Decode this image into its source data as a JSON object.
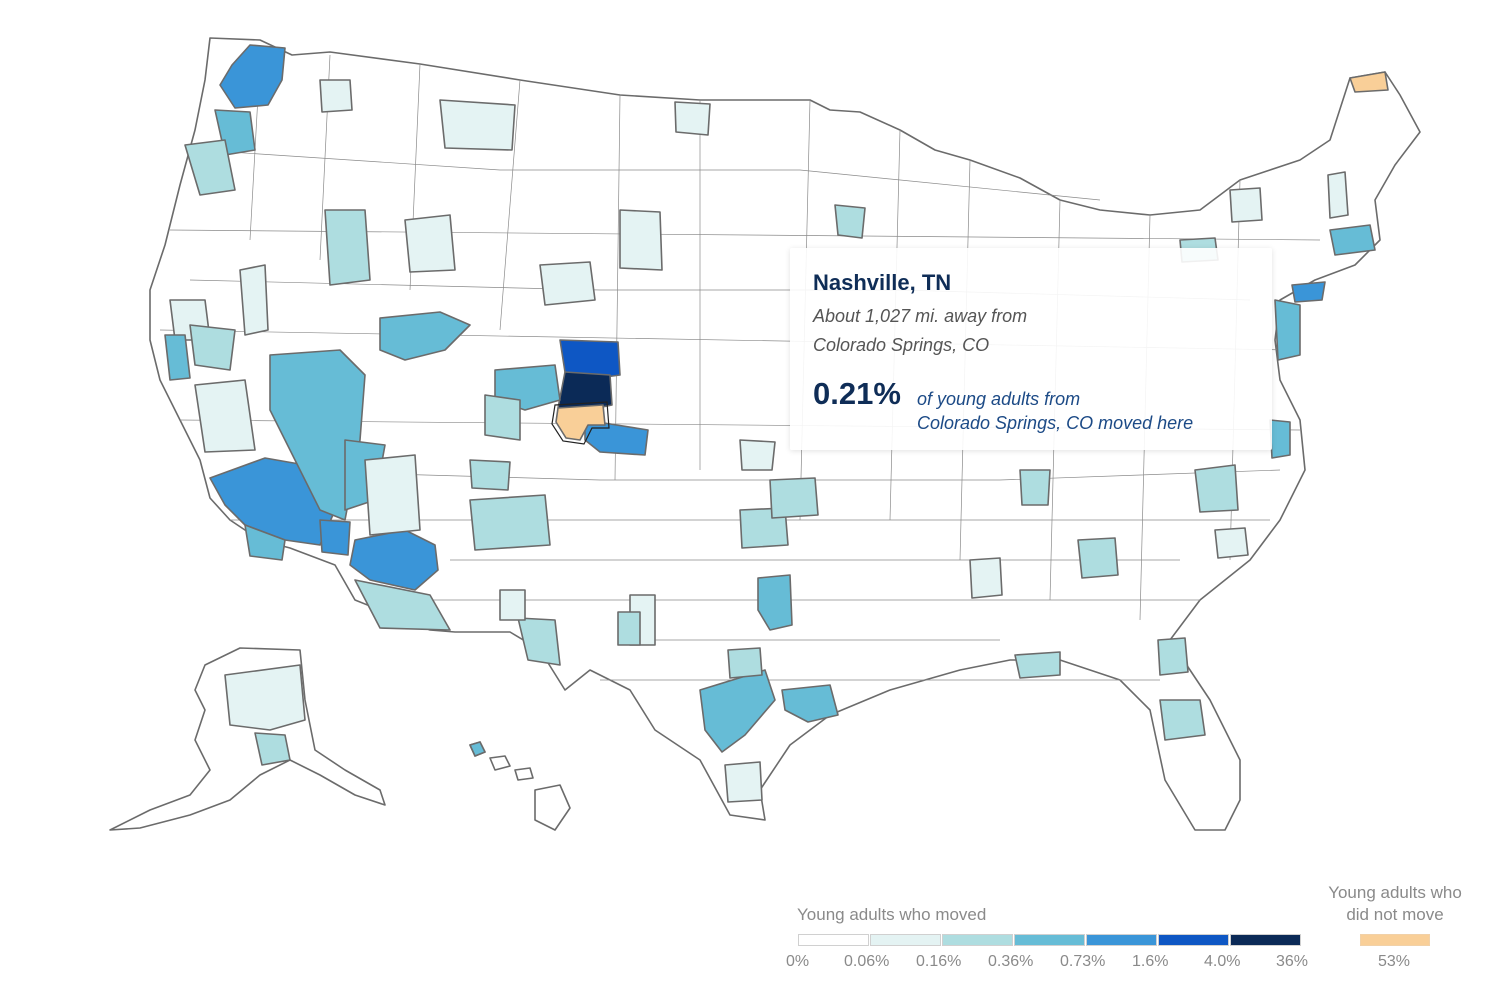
{
  "tooltip": {
    "title": "Nashville, TN",
    "distance_line1": "About 1,027 mi. away from",
    "distance_line2": "Colorado Springs, CO",
    "percent": "0.21%",
    "desc_line1": "of young adults from",
    "desc_line2": "Colorado Springs, CO moved here"
  },
  "legend": {
    "moved_title": "Young adults who moved",
    "moved_bins": [
      {
        "color": "#ffffff"
      },
      {
        "color": "#e4f3f3"
      },
      {
        "color": "#aedde0"
      },
      {
        "color": "#66bcd6"
      },
      {
        "color": "#3a95d8"
      },
      {
        "color": "#0e57c4"
      },
      {
        "color": "#0b2a57"
      }
    ],
    "moved_ticks": [
      "0%",
      "0.06%",
      "0.16%",
      "0.36%",
      "0.73%",
      "1.6%",
      "4.0%",
      "36%"
    ],
    "stayed_title_line1": "Young adults who",
    "stayed_title_line2": "did not move",
    "stayed_color": "#f9cf98",
    "stayed_value": "53%"
  },
  "map": {
    "origin_region": "Colorado Springs, CO",
    "colors": {
      "none": "#ffffff",
      "low": "#e4f3f3",
      "mid": "#aedde0",
      "mid_high": "#66bcd6",
      "high": "#3a95d8",
      "very_high": "#0e57c4",
      "max": "#0b2a57",
      "origin": "#f9cf98",
      "border": "#6b6b6b"
    }
  }
}
